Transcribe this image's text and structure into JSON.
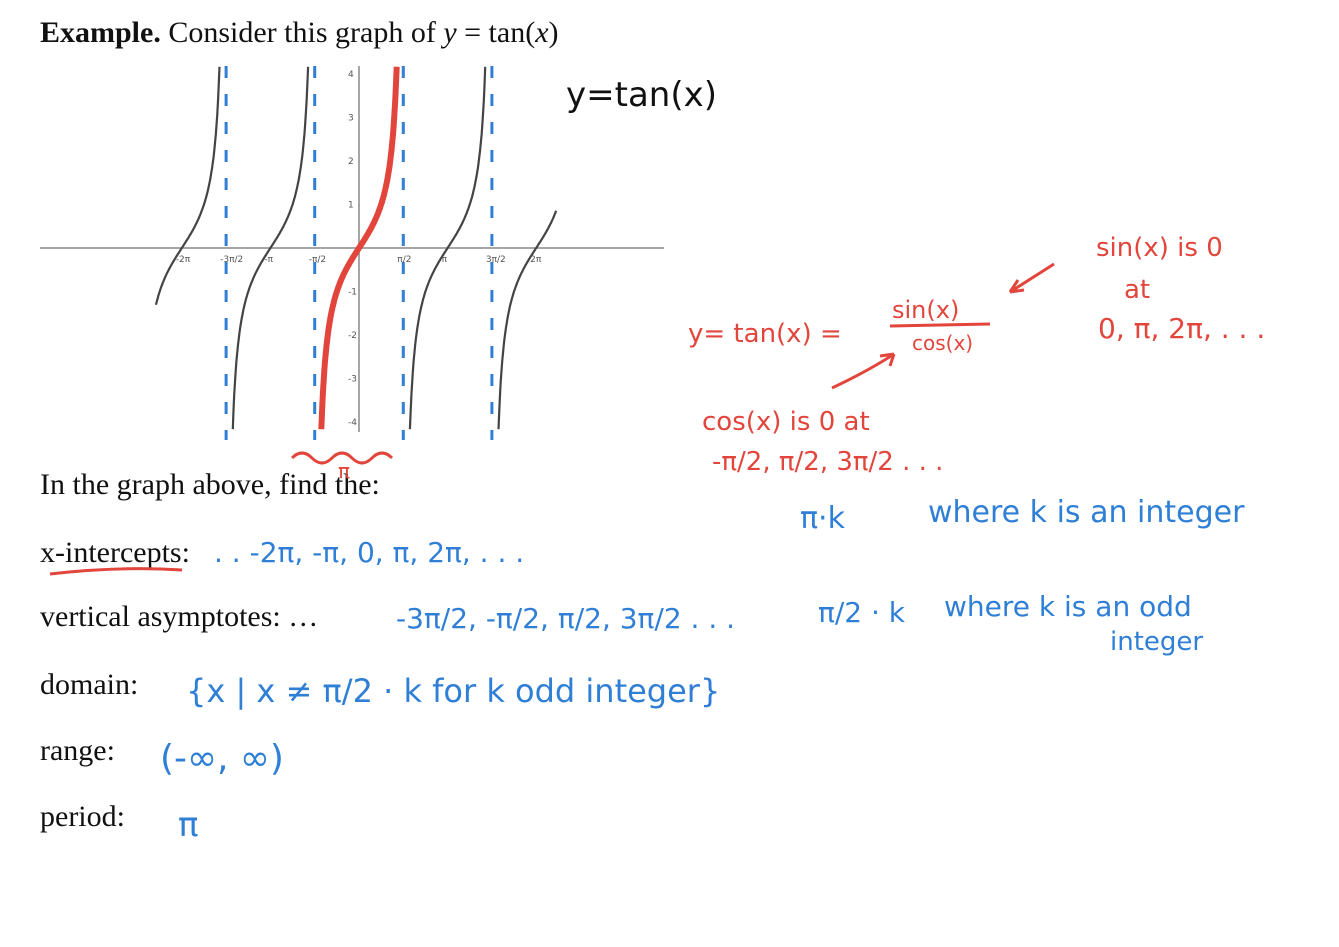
{
  "title": {
    "bold": "Example.",
    "text": "Consider this graph of ",
    "expr_y": "y",
    "expr_eq": " = tan(",
    "expr_x": "x",
    "expr_close": ")"
  },
  "intro": "In the graph above, find the:",
  "rows": {
    "x_intercepts": "x-intercepts:",
    "vertical_asymptotes": "vertical asymptotes: …",
    "domain": "domain:",
    "range": "range:",
    "period": "period:"
  },
  "graph": {
    "label": "y=tan(x)",
    "x_ticks": [
      "-2π",
      "-3π/2",
      "-π",
      "-π/2",
      "π/2",
      "π",
      "3π/2",
      "2π"
    ],
    "y_ticks": [
      "4",
      "3",
      "2",
      "1",
      "-1",
      "-2",
      "-3",
      "-4"
    ],
    "colors": {
      "curve": "#444444",
      "highlight": "#e2453b",
      "asymptote": "#2f7fd6"
    },
    "x_range": [
      -7.2,
      7.0
    ],
    "y_range": [
      -4.3,
      4.3
    ]
  },
  "annotations": {
    "tan_def": "y= tan(x) =",
    "sin_num": "sin(x)",
    "cos_den": "cos(x)",
    "sin_zero_1": "sin(x) is 0",
    "sin_zero_2": "at",
    "sin_zero_3": "0, π, 2π, . . .",
    "cos_zero_1": "cos(x) is 0 at",
    "cos_zero_2": "-π/2, π/2, 3π/2 . . .",
    "pi_under": "π",
    "pi_k": "π·k",
    "where_integer": "where k is an integer",
    "x_int_vals": ". . -2π, -π, 0, π, 2π, . . .",
    "asym_vals": "-3π/2, -π/2, π/2, 3π/2 . . .",
    "asym_rule": "π/2 · k",
    "asym_where": "where k is an odd",
    "asym_where2": "integer",
    "domain_val": "{x | x ≠  π/2 · k   for k odd integer}",
    "range_val": "(-∞, ∞)",
    "period_val": "π"
  }
}
